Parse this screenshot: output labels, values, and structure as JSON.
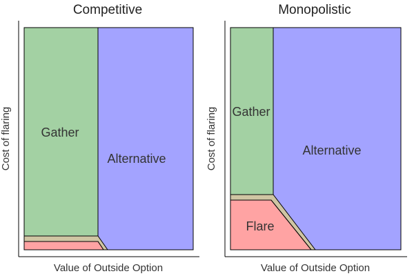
{
  "panels": [
    {
      "title": "Competitive",
      "xlabel": "Value of Outside Option",
      "ylabel": "Cost of flaring",
      "regions": [
        {
          "name": "Gather",
          "label": "Gather",
          "color": "#a3d1a3"
        },
        {
          "name": "Alternative",
          "label": "Alternative",
          "color": "#a3a3ff"
        },
        {
          "name": "Flare",
          "label": "",
          "color": "#ffa3a3"
        },
        {
          "name": "Boundary",
          "label": "",
          "color": "#cfc5a3"
        }
      ]
    },
    {
      "title": "Monopolistic",
      "xlabel": "Value of Outside Option",
      "ylabel": "Cost of flaring",
      "regions": [
        {
          "name": "Gather",
          "label": "Gather",
          "color": "#a3d1a3"
        },
        {
          "name": "Alternative",
          "label": "Alternative",
          "color": "#a3a3ff"
        },
        {
          "name": "Flare",
          "label": "Flare",
          "color": "#ffa3a3"
        },
        {
          "name": "Boundary",
          "label": "",
          "color": "#cfc5a3"
        }
      ]
    }
  ]
}
